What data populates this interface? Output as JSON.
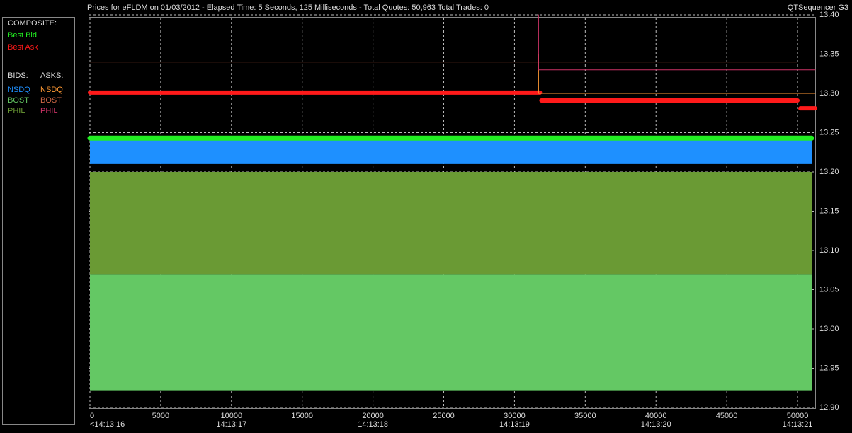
{
  "header": {
    "title": "Prices for  eFLDM  on  01/03/2012  -  Elapsed Time: 5 Seconds, 125 Milliseconds  -  Total Quotes: 50,963  Total Trades: 0",
    "app": "QTSequencer G3"
  },
  "legend": {
    "composite": "COMPOSITE:",
    "bids": "BIDS:",
    "asks": "ASKS:"
  },
  "chart_data": {
    "type": "step",
    "xlim": [
      0,
      51250
    ],
    "ylim": [
      12.9,
      13.4
    ],
    "xticks": [
      0,
      5000,
      10000,
      15000,
      20000,
      25000,
      30000,
      35000,
      40000,
      45000,
      50000
    ],
    "time_ticks": [
      {
        "value": 0,
        "label": "<14:13:16"
      },
      {
        "value": 10000,
        "label": "14:13:17"
      },
      {
        "value": 20000,
        "label": "14:13:18"
      },
      {
        "value": 30000,
        "label": "14:13:19"
      },
      {
        "value": 40000,
        "label": "14:13:20"
      },
      {
        "value": 50000,
        "label": "14:13:21"
      }
    ],
    "yticks": [
      {
        "value": 12.9,
        "label": "12.90"
      },
      12.95,
      {
        "value": 13.0,
        "label": "13.00"
      },
      13.05,
      {
        "value": 13.1,
        "label": "13.10"
      },
      13.15,
      {
        "value": 13.2,
        "label": "13.20"
      },
      13.25,
      {
        "value": 13.3,
        "label": "13.30"
      },
      13.35,
      {
        "value": 13.4,
        "label": "13.40"
      }
    ],
    "grid": true,
    "series": [
      {
        "name": "Best Bid",
        "group": "composite",
        "color": "#22ee22",
        "width": 7,
        "x": [
          0,
          51000
        ],
        "values": [
          13.243,
          13.243
        ]
      },
      {
        "name": "Best Ask",
        "group": "composite",
        "color": "#ff1a1a",
        "width": 6,
        "x": [
          0,
          31800,
          31801,
          31900,
          50000,
          50001,
          50200,
          51250
        ],
        "values": [
          13.301,
          13.301,
          null,
          13.291,
          13.291,
          null,
          13.281,
          13.281
        ]
      },
      {
        "name": "NSDQ",
        "group": "bids",
        "color": "#1e90ff",
        "x": [
          0,
          51000
        ],
        "values": [
          13.245,
          13.245
        ],
        "base": [
          13.21,
          13.21
        ]
      },
      {
        "name": "BOST",
        "group": "bids",
        "color": "#64c864",
        "x": [
          0,
          51000
        ],
        "values": [
          13.07,
          13.07
        ],
        "base": [
          12.922,
          12.922
        ]
      },
      {
        "name": "PHIL",
        "group": "bids",
        "color": "#6a9a34",
        "x": [
          0,
          51000
        ],
        "values": [
          13.2,
          13.2
        ],
        "base": [
          13.07,
          13.07
        ]
      },
      {
        "name": "NSDQ",
        "group": "asks",
        "color": "#ff9933",
        "width": 1,
        "x": [
          0,
          31700,
          31700,
          51250
        ],
        "values": [
          13.35,
          13.35,
          13.3,
          13.3
        ]
      },
      {
        "name": "BOST",
        "group": "asks",
        "color": "#cc6644",
        "width": 1,
        "x": [
          0,
          50000
        ],
        "values": [
          13.34,
          13.34
        ]
      },
      {
        "name": "PHIL",
        "group": "asks",
        "color": "#cc3366",
        "width": 1,
        "x": [
          31700,
          31700,
          51250
        ],
        "values": [
          13.4,
          13.33,
          13.33
        ]
      }
    ]
  }
}
